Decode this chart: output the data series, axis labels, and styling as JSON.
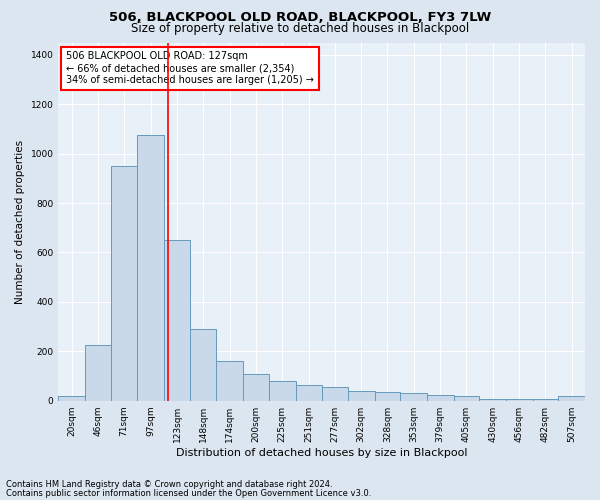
{
  "title1": "506, BLACKPOOL OLD ROAD, BLACKPOOL, FY3 7LW",
  "title2": "Size of property relative to detached houses in Blackpool",
  "xlabel": "Distribution of detached houses by size in Blackpool",
  "ylabel": "Number of detached properties",
  "annotation_line1": "506 BLACKPOOL OLD ROAD: 127sqm",
  "annotation_line2": "← 66% of detached houses are smaller (2,354)",
  "annotation_line3": "34% of semi-detached houses are larger (1,205) →",
  "footer1": "Contains HM Land Registry data © Crown copyright and database right 2024.",
  "footer2": "Contains public sector information licensed under the Open Government Licence v3.0.",
  "bar_color": "#c9d9ea",
  "bar_edge_color": "#6699bb",
  "red_line_x": 127,
  "bin_edges": [
    20,
    46,
    71,
    97,
    123,
    148,
    174,
    200,
    225,
    251,
    277,
    302,
    328,
    353,
    379,
    405,
    430,
    456,
    482,
    507,
    533
  ],
  "bar_heights": [
    20,
    225,
    950,
    1075,
    650,
    290,
    160,
    110,
    80,
    65,
    55,
    40,
    35,
    30,
    25,
    20,
    5,
    5,
    5,
    20
  ],
  "ylim": [
    0,
    1450
  ],
  "yticks": [
    0,
    200,
    400,
    600,
    800,
    1000,
    1200,
    1400
  ],
  "background_color": "#dce6f0",
  "plot_bg_color": "#e8f0f8",
  "grid_color": "#ffffff",
  "title1_fontsize": 9.5,
  "title2_fontsize": 8.5,
  "xlabel_fontsize": 8,
  "ylabel_fontsize": 7.5,
  "tick_fontsize": 6.5,
  "ann_fontsize": 7,
  "footer_fontsize": 6
}
